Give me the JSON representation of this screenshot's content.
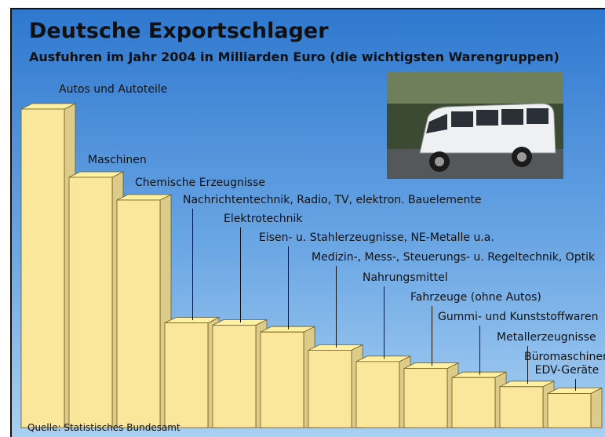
{
  "chart_data": {
    "type": "bar",
    "title": "Deutsche Exportschlager",
    "subtitle": "Ausfuhren im Jahr 2004 in Milliarden Euro (die wichtigsten Warengruppen)",
    "source": "Quelle: Statistisches Bundesamt",
    "categories": [
      "Autos und Autoteile",
      "Maschinen",
      "Chemische Erzeugnisse",
      "Nachrichtentechnik, Radio, TV, elektron. Bauelemente",
      "Elektrotechnik",
      "Eisen- u. Stahlerzeugnisse, NE-Metalle u.a.",
      "Medizin-, Mess-, Steuerungs- u. Regeltechnik, Optik",
      "Nahrungsmittel",
      "Fahrzeuge (ohne Autos)",
      "Gummi- und Kunststoffwaren",
      "Metallerzeugnisse",
      "Büromaschinen\nEDV-Geräte"
    ],
    "values": [
      140,
      110,
      100,
      46,
      45,
      42,
      34,
      29,
      26,
      22,
      18,
      15
    ],
    "color": "#fbe79c"
  }
}
